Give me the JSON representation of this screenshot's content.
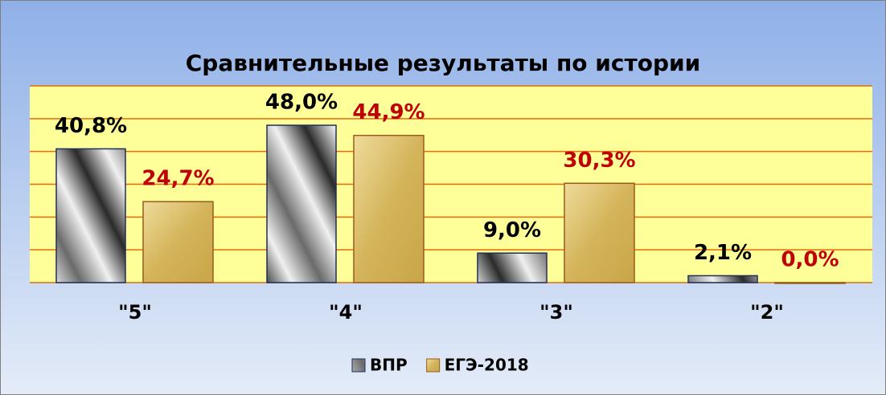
{
  "chart_data": {
    "type": "bar",
    "title": "Сравнительные результаты по истории",
    "categories": [
      "\"5\"",
      "\"4\"",
      "\"3\"",
      "\"2\""
    ],
    "series": [
      {
        "name": "ВПР",
        "color": "#8c8c8c",
        "label_color": "#000000",
        "values": [
          40.8,
          48.0,
          9.0,
          2.1
        ],
        "value_labels": [
          "40,8%",
          "48,0%",
          "9,0%",
          "2,1%"
        ]
      },
      {
        "name": "ЕГЭ-2018",
        "color": "#d4b45a",
        "label_color": "#c00000",
        "values": [
          24.7,
          44.9,
          30.3,
          0.0
        ],
        "value_labels": [
          "24,7%",
          "44,9%",
          "30,3%",
          "0,0%"
        ]
      }
    ],
    "ylim": [
      0,
      60
    ],
    "yticks": [
      0,
      10,
      20,
      30,
      40,
      50,
      60
    ],
    "grid": true,
    "legend": "bottom"
  }
}
